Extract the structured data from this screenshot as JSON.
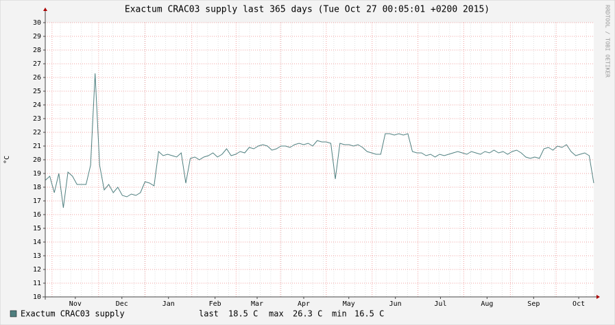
{
  "chart_data": {
    "type": "line",
    "title": "Exactum CRAC03 supply last 365 days (Tue Oct 27 00:05:01 +0200 2015)",
    "y_label": "°C",
    "side_label": "RRDTOOL / TOBI OETIKER",
    "ylim": [
      10,
      30
    ],
    "yticks": [
      10,
      11,
      12,
      13,
      14,
      15,
      16,
      17,
      18,
      19,
      20,
      21,
      22,
      23,
      24,
      25,
      26,
      27,
      28,
      29,
      30
    ],
    "xlim": [
      0,
      365
    ],
    "xticks": [
      {
        "value": 20,
        "label": "Nov"
      },
      {
        "value": 51,
        "label": "Dec"
      },
      {
        "value": 82,
        "label": "Jan"
      },
      {
        "value": 113,
        "label": "Feb"
      },
      {
        "value": 141,
        "label": "Mar"
      },
      {
        "value": 172,
        "label": "Apr"
      },
      {
        "value": 202,
        "label": "May"
      },
      {
        "value": 233,
        "label": "Jun"
      },
      {
        "value": 263,
        "label": "Jul"
      },
      {
        "value": 294,
        "label": "Aug"
      },
      {
        "value": 325,
        "label": "Sep"
      },
      {
        "value": 355,
        "label": "Oct"
      }
    ],
    "grid": true,
    "series": [
      {
        "name": "Exactum CRAC03 supply",
        "color": "#4f7f7f",
        "values": [
          18.5,
          18.8,
          17.6,
          19.0,
          16.5,
          19.1,
          18.8,
          18.2,
          18.2,
          18.2,
          19.6,
          26.3,
          19.6,
          17.8,
          18.2,
          17.6,
          18.0,
          17.4,
          17.3,
          17.5,
          17.4,
          17.6,
          18.4,
          18.3,
          18.1,
          20.6,
          20.3,
          20.4,
          20.3,
          20.2,
          20.5,
          18.3,
          20.1,
          20.2,
          20.0,
          20.2,
          20.3,
          20.5,
          20.2,
          20.4,
          20.8,
          20.3,
          20.4,
          20.6,
          20.5,
          20.9,
          20.8,
          21.0,
          21.1,
          21.0,
          20.7,
          20.8,
          21.0,
          21.0,
          20.9,
          21.1,
          21.2,
          21.1,
          21.2,
          21.0,
          21.4,
          21.3,
          21.3,
          21.2,
          18.6,
          21.2,
          21.1,
          21.1,
          21.0,
          21.1,
          20.9,
          20.6,
          20.5,
          20.4,
          20.4,
          21.9,
          21.9,
          21.8,
          21.9,
          21.8,
          21.9,
          20.6,
          20.5,
          20.5,
          20.3,
          20.4,
          20.2,
          20.4,
          20.3,
          20.4,
          20.5,
          20.6,
          20.5,
          20.4,
          20.6,
          20.5,
          20.4,
          20.6,
          20.5,
          20.7,
          20.5,
          20.6,
          20.4,
          20.6,
          20.7,
          20.5,
          20.2,
          20.1,
          20.2,
          20.1,
          20.8,
          20.9,
          20.7,
          21.0,
          20.9,
          21.1,
          20.6,
          20.3,
          20.4,
          20.5,
          20.3,
          18.3
        ]
      }
    ],
    "stats": [
      {
        "label": "last",
        "value": "18.5 C"
      },
      {
        "label": "max",
        "value": "26.3 C"
      },
      {
        "label": "min",
        "value": "16.5 C"
      }
    ]
  }
}
